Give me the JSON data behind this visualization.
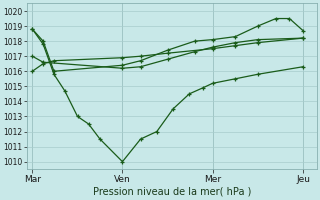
{
  "background_color": "#c8e8e8",
  "grid_color": "#a8cccc",
  "line_color": "#1a5c1a",
  "xlabel": "Pression niveau de la mer( hPa )",
  "ylim": [
    1009.5,
    1020.5
  ],
  "yticks": [
    1010,
    1011,
    1012,
    1013,
    1014,
    1015,
    1016,
    1017,
    1018,
    1019,
    1020
  ],
  "xtick_labels": [
    "Mar",
    "Ven",
    "Mer",
    "Jeu"
  ],
  "xtick_positions": [
    0.0,
    0.333,
    0.666,
    1.0
  ],
  "vline_positions": [
    0.0,
    0.333,
    0.666,
    1.0
  ],
  "series": [
    {
      "x": [
        0.0,
        0.04,
        0.08,
        0.12,
        0.167,
        0.208,
        0.25,
        0.333,
        0.4,
        0.46,
        0.52,
        0.58,
        0.63,
        0.666,
        0.75,
        0.833,
        1.0
      ],
      "y": [
        1018.8,
        1017.8,
        1015.8,
        1014.7,
        1013.0,
        1012.5,
        1011.5,
        1010.0,
        1011.5,
        1012.0,
        1013.5,
        1014.5,
        1014.9,
        1015.2,
        1015.5,
        1015.8,
        1016.3
      ]
    },
    {
      "x": [
        0.0,
        0.04,
        0.08,
        0.333,
        0.4,
        0.5,
        0.666,
        0.75,
        0.833,
        1.0
      ],
      "y": [
        1016.0,
        1016.5,
        1016.7,
        1016.9,
        1017.0,
        1017.2,
        1017.5,
        1017.7,
        1017.9,
        1018.2
      ]
    },
    {
      "x": [
        0.0,
        0.04,
        0.333,
        0.4,
        0.5,
        0.6,
        0.666,
        0.75,
        0.833,
        1.0
      ],
      "y": [
        1017.0,
        1016.6,
        1016.2,
        1016.3,
        1016.8,
        1017.3,
        1017.6,
        1017.9,
        1018.1,
        1018.2
      ]
    },
    {
      "x": [
        0.0,
        0.04,
        0.08,
        0.333,
        0.4,
        0.5,
        0.6,
        0.666,
        0.75,
        0.833,
        0.9,
        0.95,
        1.0
      ],
      "y": [
        1018.8,
        1018.0,
        1016.0,
        1016.4,
        1016.7,
        1017.4,
        1018.0,
        1018.1,
        1018.3,
        1019.0,
        1019.5,
        1019.5,
        1018.7
      ]
    }
  ]
}
